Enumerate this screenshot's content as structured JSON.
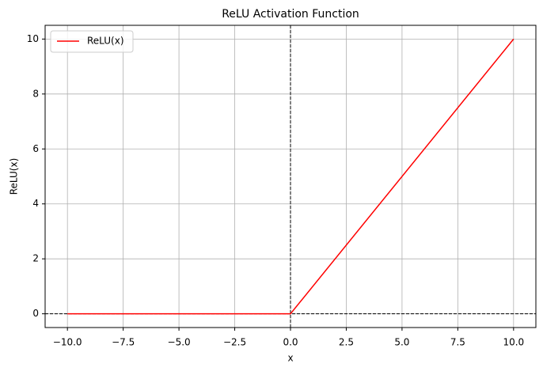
{
  "chart_data": {
    "type": "line",
    "title": "ReLU Activation Function",
    "x_label": "x",
    "y_label": "ReLU(x)",
    "x": [
      -10,
      0,
      10
    ],
    "series": [
      {
        "name": "ReLU(x)",
        "color": "#ff0000",
        "values": [
          0,
          0,
          10
        ]
      }
    ],
    "xlim": [
      -11,
      11
    ],
    "xticks": [
      {
        "value": -10,
        "label": "−10.0"
      },
      {
        "value": -7.5,
        "label": "−7.5"
      },
      {
        "value": -5,
        "label": "−5.0"
      },
      {
        "value": -2.5,
        "label": "−2.5"
      },
      {
        "value": 0,
        "label": "0.0"
      },
      2.5,
      {
        "value": 5,
        "label": "5.0"
      },
      7.5,
      {
        "value": 10,
        "label": "10.0"
      }
    ],
    "ylim": [
      -0.5,
      10.5
    ],
    "yticks": [
      0,
      2,
      4,
      6,
      8,
      10
    ],
    "hlines": [
      0
    ],
    "vlines": [
      0
    ],
    "ref_color": "#000000",
    "grid": true,
    "legend": "upper-left"
  }
}
